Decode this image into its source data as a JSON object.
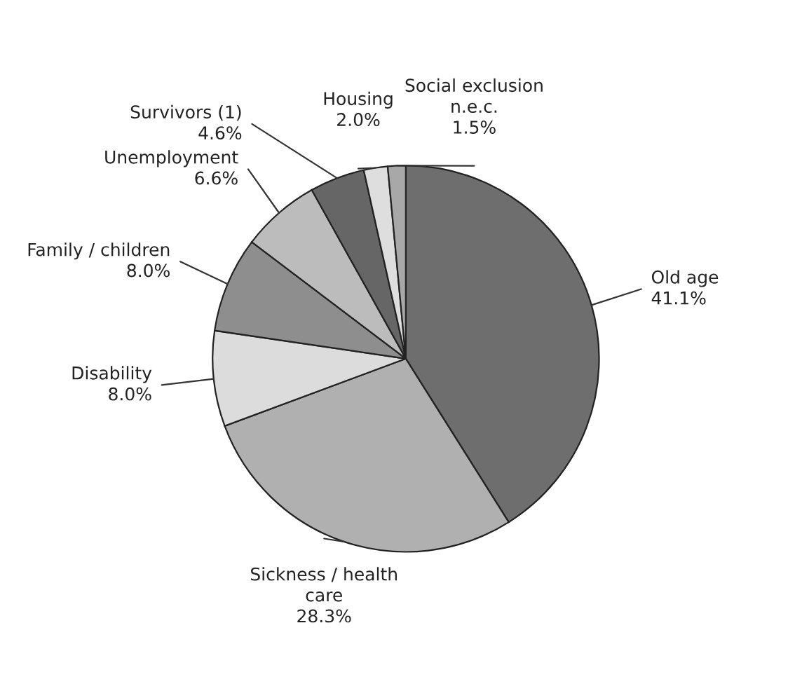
{
  "chart_data": {
    "type": "pie",
    "categories": [
      "Old age",
      "Sickness / health care",
      "Disability",
      "Family / children",
      "Unemployment",
      "Survivors (1)",
      "Housing",
      "Social exclusion n.e.c."
    ],
    "values": [
      41.1,
      28.3,
      8.0,
      8.0,
      6.6,
      4.6,
      2.0,
      1.5
    ],
    "value_labels": [
      "41.1%",
      "28.3%",
      "8.0%",
      "8.0%",
      "6.6%",
      "4.6%",
      "2.0%",
      "1.5%"
    ],
    "colors": [
      "#6e6e6e",
      "#b0b0b0",
      "#dcdcdc",
      "#8e8e8e",
      "#bcbcbc",
      "#666666",
      "#dedede",
      "#a8a8a8"
    ],
    "legend": false
  }
}
